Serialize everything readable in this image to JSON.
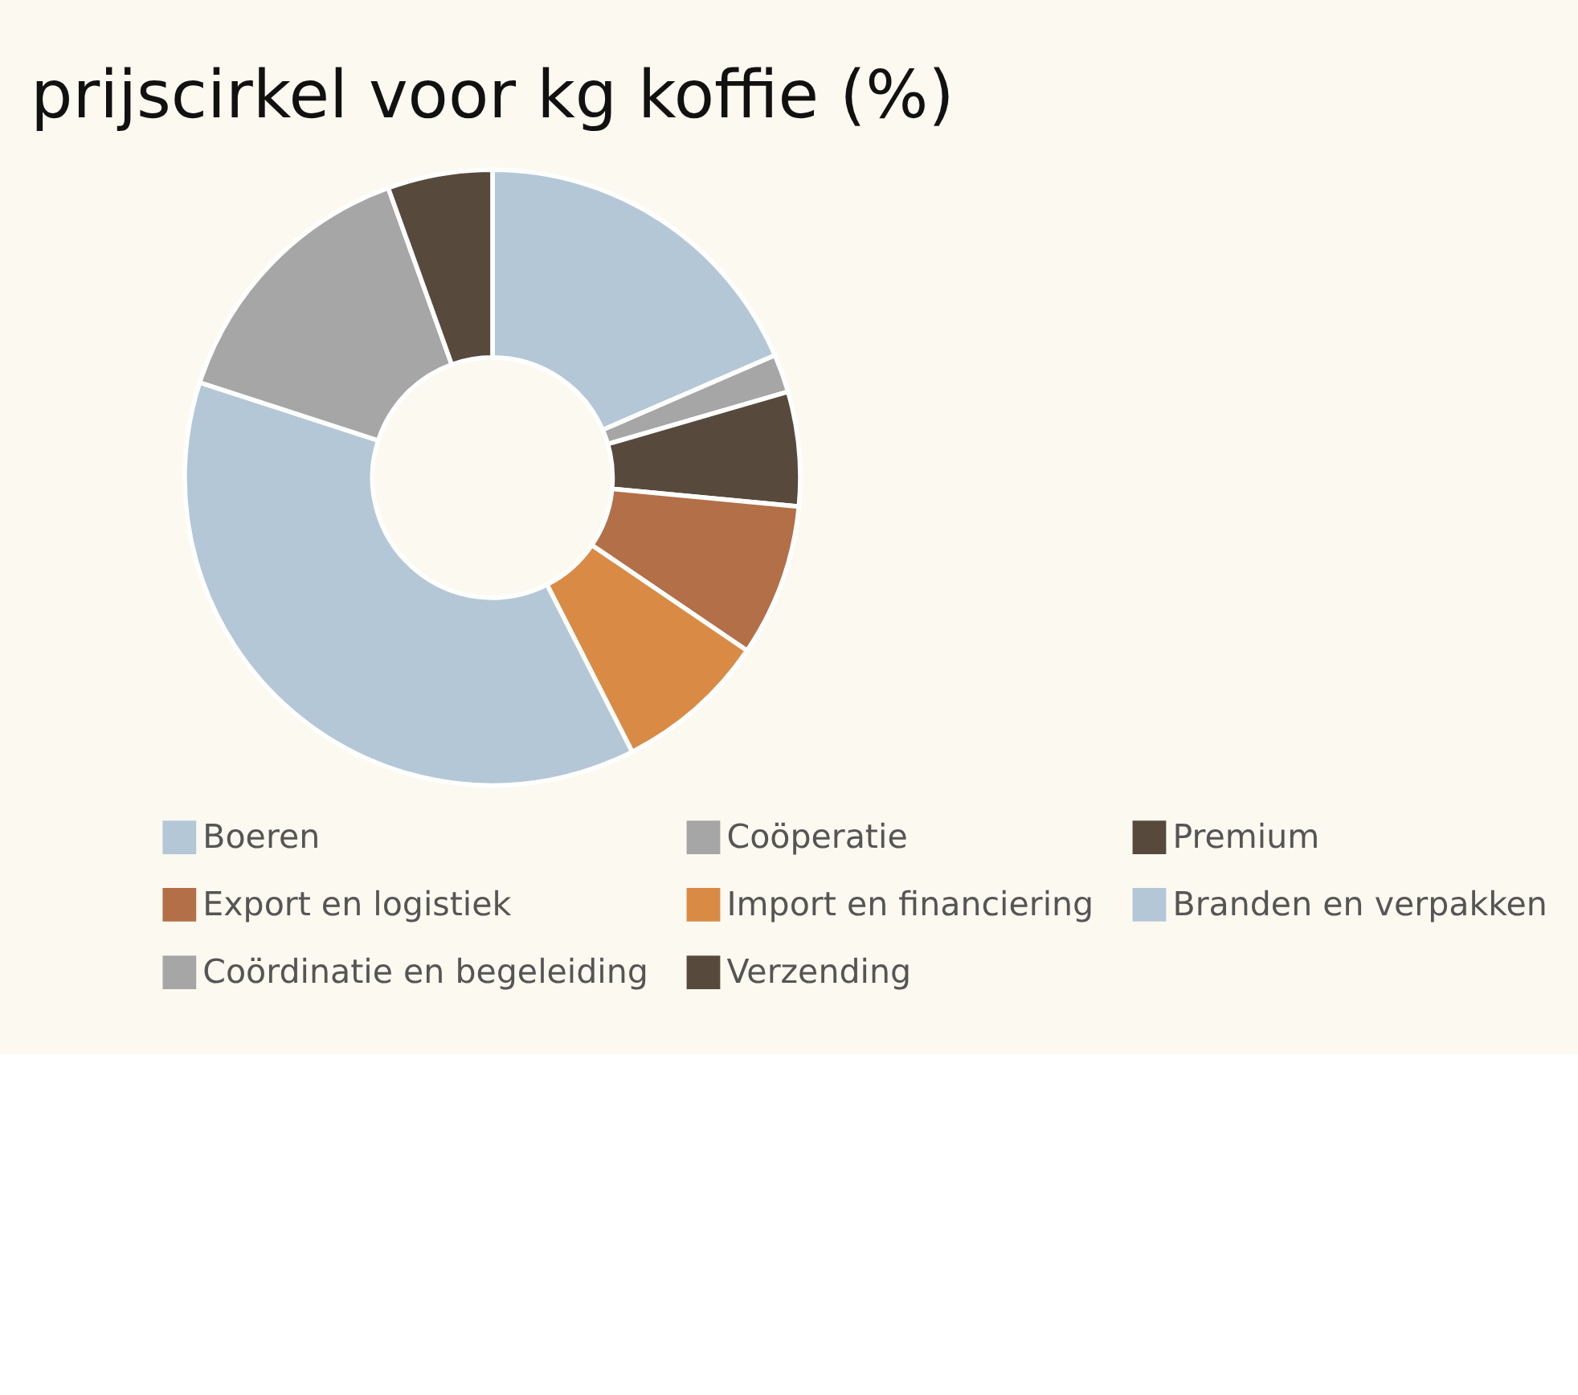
{
  "chart_data": {
    "type": "donut",
    "title": "prijscirkel voor kg koffie (%)",
    "categories": [
      "Boeren",
      "Coöperatie",
      "Premium",
      "Export en logistiek",
      "Import en financiering",
      "Branden en verpakken",
      "Coördinatie en begeleiding",
      "Verzending"
    ],
    "values": [
      18.5,
      2,
      6,
      8,
      8,
      37.5,
      14.5,
      5.5
    ],
    "colors": [
      "#b4c7d7",
      "#a6a6a6",
      "#574a3d",
      "#b36f47",
      "#d98b45",
      "#b4c7d7",
      "#a6a6a6",
      "#574a3d"
    ],
    "legend": "bottom"
  }
}
